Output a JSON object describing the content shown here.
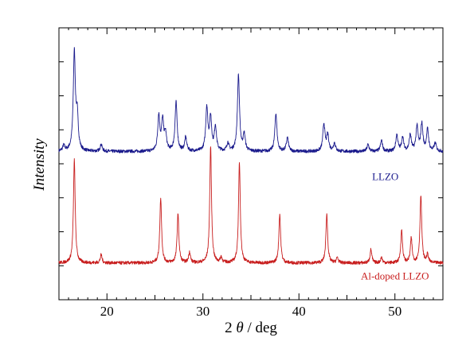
{
  "chart_data": {
    "type": "line",
    "xlabel": "2 θ / deg",
    "xlabel_parts": {
      "prefix": "2 ",
      "symbol": "θ",
      "suffix": " / deg"
    },
    "ylabel": "Intensity",
    "xlim": [
      15,
      55
    ],
    "ylim": [
      0,
      1
    ],
    "x_ticks": [
      20,
      30,
      40,
      50
    ],
    "y_ticks_unlabeled": true,
    "grid": false,
    "series": [
      {
        "name": "LLZO",
        "color": "#1a1a8c",
        "baseline": 0.545,
        "noise": 0.006,
        "peak_width": 0.13,
        "peaks": [
          [
            15.5,
            0.02
          ],
          [
            16.6,
            0.36
          ],
          [
            16.9,
            0.12
          ],
          [
            19.4,
            0.025
          ],
          [
            25.4,
            0.13
          ],
          [
            25.8,
            0.11
          ],
          [
            26.1,
            0.06
          ],
          [
            27.2,
            0.18
          ],
          [
            28.2,
            0.05
          ],
          [
            30.4,
            0.16
          ],
          [
            30.8,
            0.12
          ],
          [
            31.3,
            0.09
          ],
          [
            32.6,
            0.03
          ],
          [
            33.7,
            0.28
          ],
          [
            34.3,
            0.06
          ],
          [
            37.6,
            0.14
          ],
          [
            38.8,
            0.05
          ],
          [
            42.6,
            0.1
          ],
          [
            43.0,
            0.06
          ],
          [
            43.7,
            0.03
          ],
          [
            47.2,
            0.025
          ],
          [
            48.6,
            0.04
          ],
          [
            50.2,
            0.06
          ],
          [
            50.8,
            0.05
          ],
          [
            51.6,
            0.06
          ],
          [
            52.3,
            0.09
          ],
          [
            52.8,
            0.1
          ],
          [
            53.4,
            0.08
          ],
          [
            54.2,
            0.03
          ]
        ],
        "label": "LLZO",
        "label_at": [
          49.0,
          0.44
        ]
      },
      {
        "name": "Al-doped LLZO",
        "color": "#c81e1e",
        "baseline": 0.135,
        "noise": 0.006,
        "peak_width": 0.11,
        "peaks": [
          [
            16.6,
            0.38
          ],
          [
            19.4,
            0.03
          ],
          [
            25.6,
            0.24
          ],
          [
            27.4,
            0.18
          ],
          [
            28.6,
            0.04
          ],
          [
            30.8,
            0.43
          ],
          [
            31.9,
            0.02
          ],
          [
            33.8,
            0.37
          ],
          [
            38.0,
            0.18
          ],
          [
            42.9,
            0.18
          ],
          [
            44.0,
            0.02
          ],
          [
            47.5,
            0.05
          ],
          [
            48.6,
            0.02
          ],
          [
            50.7,
            0.12
          ],
          [
            51.7,
            0.09
          ],
          [
            52.7,
            0.25
          ],
          [
            53.4,
            0.03
          ]
        ],
        "label": "Al-doped LLZO",
        "label_at": [
          50.0,
          0.075
        ]
      }
    ]
  }
}
